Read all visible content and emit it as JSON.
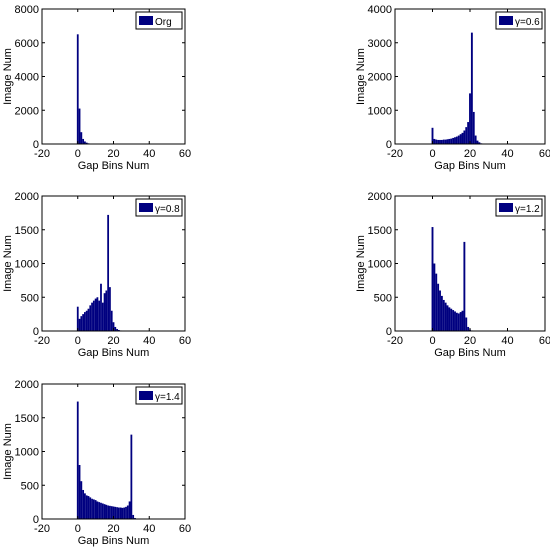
{
  "figure": {
    "bar_color": "#000080",
    "axis_color": "#000000"
  },
  "chart_data": [
    {
      "type": "bar",
      "title": "",
      "legend": "Org",
      "legend_position": "top-right",
      "xlabel": "Gap Bins Num",
      "ylabel": "Image Num",
      "xlim": [
        -20,
        60
      ],
      "ylim": [
        0,
        8000
      ],
      "xticks": [
        -20,
        0,
        20,
        40,
        60
      ],
      "yticks": [
        0,
        2000,
        4000,
        6000,
        8000
      ],
      "x": [
        0,
        1,
        2,
        3,
        4,
        5,
        6,
        7,
        8
      ],
      "values": [
        6500,
        2100,
        700,
        300,
        150,
        80,
        40,
        20,
        10
      ]
    },
    {
      "type": "bar",
      "title": "",
      "legend": "γ=0.6",
      "legend_position": "top-right",
      "xlabel": "Gap Bins Num",
      "ylabel": "Image Num",
      "xlim": [
        -20,
        60
      ],
      "ylim": [
        0,
        4000
      ],
      "xticks": [
        -20,
        0,
        20,
        40,
        60
      ],
      "yticks": [
        0,
        1000,
        2000,
        3000,
        4000
      ],
      "x": [
        0,
        1,
        2,
        3,
        4,
        5,
        6,
        7,
        8,
        9,
        10,
        11,
        12,
        13,
        14,
        15,
        16,
        17,
        18,
        19,
        20,
        21,
        22,
        23,
        24,
        25,
        26,
        27,
        28,
        29
      ],
      "values": [
        480,
        150,
        130,
        120,
        120,
        120,
        130,
        130,
        140,
        150,
        160,
        180,
        200,
        220,
        250,
        290,
        330,
        400,
        500,
        650,
        1500,
        3300,
        950,
        250,
        100,
        50,
        20,
        10,
        5,
        2
      ]
    },
    {
      "type": "bar",
      "title": "",
      "legend": "γ=0.8",
      "legend_position": "top-right",
      "xlabel": "Gap Bins Num",
      "ylabel": "Image Num",
      "xlim": [
        -20,
        60
      ],
      "ylim": [
        0,
        2000
      ],
      "xticks": [
        -20,
        0,
        20,
        40,
        60
      ],
      "yticks": [
        0,
        500,
        1000,
        1500,
        2000
      ],
      "x": [
        0,
        1,
        2,
        3,
        4,
        5,
        6,
        7,
        8,
        9,
        10,
        11,
        12,
        13,
        14,
        15,
        16,
        17,
        18,
        19,
        20,
        21,
        22,
        23,
        24,
        25
      ],
      "values": [
        360,
        180,
        220,
        250,
        280,
        300,
        330,
        380,
        420,
        450,
        480,
        500,
        450,
        700,
        420,
        560,
        600,
        1720,
        650,
        300,
        130,
        60,
        30,
        15,
        8,
        4
      ]
    },
    {
      "type": "bar",
      "title": "",
      "legend": "γ=1.2",
      "legend_position": "top-right",
      "xlabel": "Gap Bins Num",
      "ylabel": "Image Num",
      "xlim": [
        -20,
        60
      ],
      "ylim": [
        0,
        2000
      ],
      "xticks": [
        -20,
        0,
        20,
        40,
        60
      ],
      "yticks": [
        0,
        500,
        1000,
        1500,
        2000
      ],
      "x": [
        0,
        1,
        2,
        3,
        4,
        5,
        6,
        7,
        8,
        9,
        10,
        11,
        12,
        13,
        14,
        15,
        16,
        17,
        18,
        19,
        20,
        21,
        22
      ],
      "values": [
        1540,
        1000,
        850,
        700,
        600,
        520,
        460,
        420,
        380,
        350,
        330,
        310,
        290,
        270,
        260,
        280,
        300,
        1320,
        200,
        60,
        20,
        8,
        3
      ]
    },
    {
      "type": "bar",
      "title": "",
      "legend": "γ=1.4",
      "legend_position": "top-right",
      "xlabel": "Gap Bins Num",
      "ylabel": "Image Num",
      "xlim": [
        -20,
        60
      ],
      "ylim": [
        0,
        2000
      ],
      "xticks": [
        -20,
        0,
        20,
        40,
        60
      ],
      "yticks": [
        0,
        500,
        1000,
        1500,
        2000
      ],
      "x": [
        0,
        1,
        2,
        3,
        4,
        5,
        6,
        7,
        8,
        9,
        10,
        11,
        12,
        13,
        14,
        15,
        16,
        17,
        18,
        19,
        20,
        21,
        22,
        23,
        24,
        25,
        26,
        27,
        28,
        29,
        30,
        31,
        32,
        33,
        34
      ],
      "values": [
        1740,
        800,
        560,
        430,
        380,
        350,
        340,
        320,
        300,
        290,
        280,
        260,
        250,
        240,
        230,
        220,
        210,
        200,
        195,
        190,
        185,
        180,
        175,
        170,
        170,
        165,
        170,
        180,
        200,
        260,
        1250,
        60,
        15,
        5,
        2
      ]
    }
  ]
}
